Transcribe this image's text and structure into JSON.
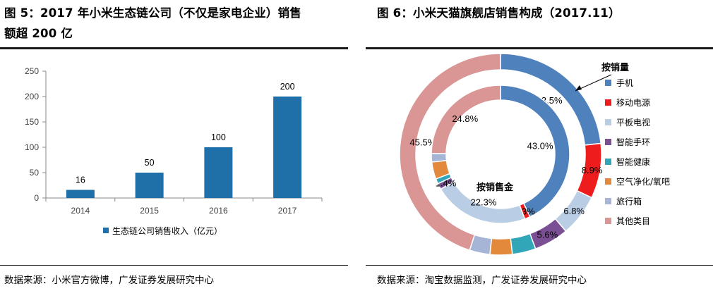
{
  "left": {
    "title_line1": "图 5：2017 年小米生态链公司（不仅是家电企业）销售",
    "title_line2": "额超 200 亿",
    "source": "数据来源：小米官方微博，广发证券发展研究中心"
  },
  "right": {
    "title": "图 6：小米天猫旗舰店销售构成（2017.11）",
    "source": "数据来源：淘宝数据监测，广发证券发展研究中心"
  },
  "chart_data": [
    {
      "type": "bar",
      "categories": [
        "2014",
        "2015",
        "2016",
        "2017"
      ],
      "series": [
        {
          "name": "生态链公司销售收入（亿元）",
          "values": [
            16,
            50,
            100,
            200
          ],
          "color": "#1f6fa8"
        }
      ],
      "data_labels": [
        "16",
        "50",
        "100",
        "200"
      ],
      "ylim": [
        0,
        250
      ],
      "yticks": [
        0,
        50,
        100,
        150,
        200,
        250
      ],
      "grid": false,
      "legend_position": "bottom"
    },
    {
      "type": "pie",
      "subtype": "doughnut",
      "categories": [
        "手机",
        "移动电源",
        "平板电视",
        "智能手环",
        "智能健康",
        "空气净化/氧吧",
        "旅行箱",
        "其他类目"
      ],
      "colors": [
        "#4f81bd",
        "#ee1c1c",
        "#b9cde5",
        "#7a4f94",
        "#31a6b8",
        "#e3893c",
        "#a6b5d6",
        "#d99694"
      ],
      "series": [
        {
          "name": "按销量",
          "values": [
            23.5,
            8.9,
            6.8,
            5.6,
            3.8,
            3.6,
            3.3,
            45.5
          ],
          "labels": [
            "23.5%",
            "8.9%",
            "6.8%",
            "5.6%",
            "",
            "",
            "",
            "45.5%"
          ]
        },
        {
          "name": "按销售金",
          "values": [
            43.0,
            1.3,
            22.3,
            1.4,
            1.2,
            4.0,
            2.0,
            24.8
          ],
          "labels": [
            "43.0%",
            "1.3%",
            "22.3%",
            "1.4%",
            "",
            "",
            "",
            "24.8%"
          ]
        }
      ],
      "legend_position": "right"
    }
  ]
}
